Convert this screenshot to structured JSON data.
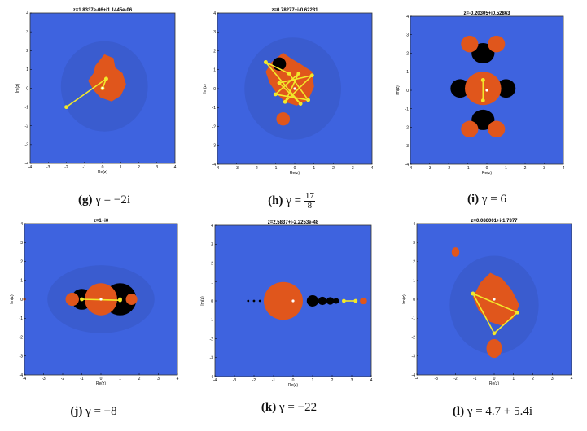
{
  "figure": {
    "panels": [
      {
        "id": "g",
        "label": "(g)",
        "gamma": "γ = −2i",
        "ztitle": "z=1.8337e-06+i1.1445e-06"
      },
      {
        "id": "h",
        "label": "(h)",
        "gamma_prefix": "γ = ",
        "frac_num": "17",
        "frac_den": "8",
        "ztitle": "z=0.78277+i-0.62231"
      },
      {
        "id": "i",
        "label": "(i)",
        "gamma": "γ = 6",
        "ztitle": "z=-0.20305+i0.52863"
      },
      {
        "id": "j",
        "label": "(j)",
        "gamma": "γ = −8",
        "ztitle": "z=1+i0"
      },
      {
        "id": "k",
        "label": "(k)",
        "gamma": "γ = −22",
        "ztitle": "z=2.5837+i-2.2253e-48"
      },
      {
        "id": "l",
        "label": "(l)",
        "gamma": "γ = 4.7 + 5.4i",
        "ztitle": "z=0.086001+i-1.7377"
      }
    ],
    "axes": {
      "xlabel": "Re(z)",
      "ylabel": "Im(z)",
      "xticks": [
        "-4",
        "-3",
        "-2",
        "-1",
        "0",
        "1",
        "2",
        "3",
        "4"
      ],
      "yticks": [
        "4",
        "3",
        "2",
        "1",
        "0",
        "-1",
        "-2",
        "-3",
        "-4"
      ]
    },
    "colors": {
      "background": "#3e63df",
      "halo": "#3a5ccf",
      "fractal": "#e0561c",
      "black": "#000000",
      "orbit": "#f2e92a"
    }
  }
}
